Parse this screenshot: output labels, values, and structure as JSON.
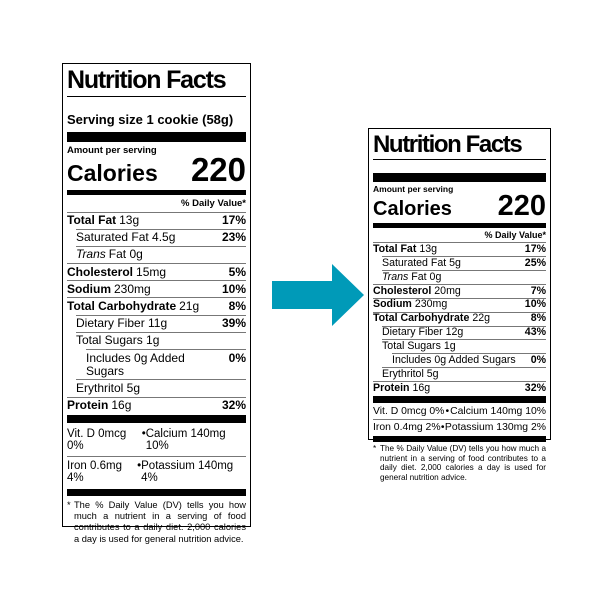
{
  "arrow": {
    "name": "before-to-after-arrow",
    "color": "#009AB8",
    "direction": "right"
  },
  "left_label": {
    "title": "Nutrition Facts",
    "serving_size": "Serving size 1 cookie (58g)",
    "amount_per_serving": "Amount per serving",
    "calories_label": "Calories",
    "calories_value": "220",
    "daily_value_header": "% Daily Value*",
    "bullet": "•",
    "rows": [
      {
        "lead": "Total Fat",
        "lead_style": "bold",
        "rest": "13g",
        "dv": "17%",
        "indent": 0
      },
      {
        "lead": "Saturated Fat 4.5g",
        "lead_style": "plain",
        "rest": "",
        "dv": "23%",
        "indent": 1
      },
      {
        "lead": "Trans",
        "lead_style": "italic",
        "rest": "Fat 0g",
        "dv": "",
        "indent": 1
      },
      {
        "lead": "Cholesterol",
        "lead_style": "bold",
        "rest": "15mg",
        "dv": "5%",
        "indent": 0
      },
      {
        "lead": "Sodium",
        "lead_style": "bold",
        "rest": "230mg",
        "dv": "10%",
        "indent": 0
      },
      {
        "lead": "Total Carbohydrate",
        "lead_style": "bold",
        "rest": "21g",
        "dv": "8%",
        "indent": 0
      },
      {
        "lead": "Dietary Fiber 11g",
        "lead_style": "plain",
        "rest": "",
        "dv": "39%",
        "indent": 1
      },
      {
        "lead": "Total Sugars 1g",
        "lead_style": "plain",
        "rest": "",
        "dv": "",
        "indent": 1
      },
      {
        "lead": "Includes 0g Added Sugars",
        "lead_style": "plain",
        "rest": "",
        "dv": "0%",
        "indent": 2
      },
      {
        "lead": "Erythritol 5g",
        "lead_style": "plain",
        "rest": "",
        "dv": "",
        "indent": 1
      },
      {
        "lead": "Protein",
        "lead_style": "bold",
        "rest": "16g",
        "dv": "32%",
        "indent": 0
      }
    ],
    "micronutrients": [
      {
        "left": "Vit. D 0mcg 0%",
        "right": "Calcium 140mg 10%"
      },
      {
        "left": "Iron 0.6mg 4%",
        "right": "Potassium 140mg 4%"
      }
    ],
    "footnote_marker": "*",
    "footnote": "The % Daily Value (DV) tells you how much a nutrient in a serving of food contributes to a daily diet. 2,000 calories a day is used for general nutrition advice."
  },
  "right_label": {
    "title": "Nutrition Facts",
    "amount_per_serving": "Amount per serving",
    "calories_label": "Calories",
    "calories_value": "220",
    "daily_value_header": "% Daily Value*",
    "bullet": "•",
    "rows": [
      {
        "lead": "Total Fat",
        "lead_style": "bold",
        "rest": "13g",
        "dv": "17%",
        "indent": 0
      },
      {
        "lead": "Saturated Fat 5g",
        "lead_style": "plain",
        "rest": "",
        "dv": "25%",
        "indent": 1
      },
      {
        "lead": "Trans",
        "lead_style": "italic",
        "rest": "Fat 0g",
        "dv": "",
        "indent": 1
      },
      {
        "lead": "Cholesterol",
        "lead_style": "bold",
        "rest": "20mg",
        "dv": "7%",
        "indent": 0
      },
      {
        "lead": "Sodium",
        "lead_style": "bold",
        "rest": "230mg",
        "dv": "10%",
        "indent": 0
      },
      {
        "lead": "Total Carbohydrate",
        "lead_style": "bold",
        "rest": "22g",
        "dv": "8%",
        "indent": 0
      },
      {
        "lead": "Dietary Fiber 12g",
        "lead_style": "plain",
        "rest": "",
        "dv": "43%",
        "indent": 1
      },
      {
        "lead": "Total Sugars 1g",
        "lead_style": "plain",
        "rest": "",
        "dv": "",
        "indent": 1
      },
      {
        "lead": "Includes 0g Added Sugars",
        "lead_style": "plain",
        "rest": "",
        "dv": "0%",
        "indent": 2
      },
      {
        "lead": "Erythritol 5g",
        "lead_style": "plain",
        "rest": "",
        "dv": "",
        "indent": 1
      },
      {
        "lead": "Protein",
        "lead_style": "bold",
        "rest": "16g",
        "dv": "32%",
        "indent": 0
      }
    ],
    "micronutrients": [
      {
        "left": "Vit. D 0mcg 0%",
        "right": "Calcium 140mg 10%"
      },
      {
        "left": "Iron 0.4mg 2%",
        "right": "Potassium 130mg 2%"
      }
    ],
    "footnote_marker": "*",
    "footnote": "The % Daily Value (DV) tells you how much a nutrient in a serving of food contributes to a daily diet. 2,000 calories a day is used for general nutrition advice."
  }
}
